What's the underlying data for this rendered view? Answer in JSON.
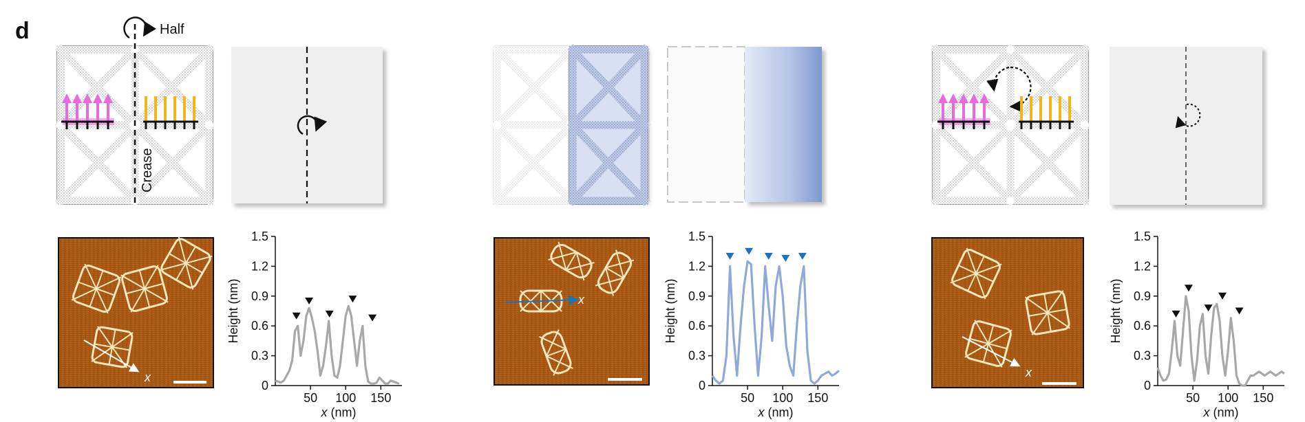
{
  "panel_letter": "d",
  "labels": {
    "half": "Half",
    "crease": "Crease",
    "afm_axis_1": "x",
    "afm_axis_2": "x",
    "afm_axis_3": "x"
  },
  "colors": {
    "magenta": "#e86adf",
    "gold": "#f2b51c",
    "blue_trace": "#8fa9db",
    "blue_marker": "#1a73bf",
    "gray_trace": "#a8a8a8",
    "afm_bg": "#a85a14",
    "origami_edge": "#888888",
    "sheet_fill": "#efefef",
    "fold_blue": "#b9c8ea"
  },
  "chart_data": [
    {
      "type": "line",
      "title": "",
      "xlabel": "x (nm)",
      "ylabel": "Height (nm)",
      "xlim": [
        0,
        180
      ],
      "ylim": [
        0,
        1.5
      ],
      "xticks": [
        50,
        100,
        150
      ],
      "yticks": [
        0,
        0.3,
        0.6,
        0.9,
        1.2,
        1.5
      ],
      "ytick_labels": [
        "0",
        "0.3",
        "0.6",
        "0.9",
        "1.2",
        "1.5"
      ],
      "grid": false,
      "series": [
        {
          "color": "#a8a8a8",
          "x": [
            0,
            4,
            8,
            12,
            16,
            20,
            24,
            28,
            32,
            36,
            40,
            44,
            48,
            52,
            56,
            60,
            64,
            68,
            72,
            76,
            80,
            84,
            88,
            92,
            96,
            100,
            104,
            108,
            112,
            116,
            120,
            124,
            128,
            132,
            136,
            140,
            144,
            148,
            152,
            156,
            160,
            164,
            168,
            172,
            176
          ],
          "y": [
            0.05,
            0.04,
            0.03,
            0.05,
            0.1,
            0.15,
            0.25,
            0.55,
            0.6,
            0.3,
            0.45,
            0.7,
            0.78,
            0.68,
            0.55,
            0.35,
            0.1,
            0.2,
            0.4,
            0.65,
            0.3,
            0.1,
            0.08,
            0.2,
            0.45,
            0.7,
            0.8,
            0.7,
            0.45,
            0.2,
            0.45,
            0.6,
            0.2,
            0.04,
            0.02,
            0.02,
            0.03,
            0.08,
            0.05,
            0.02,
            0.02,
            0.05,
            0.04,
            0.03,
            0.02
          ]
        }
      ],
      "markers": [
        {
          "x": 30,
          "y": 0.7
        },
        {
          "x": 48,
          "y": 0.85
        },
        {
          "x": 77,
          "y": 0.72
        },
        {
          "x": 110,
          "y": 0.87
        },
        {
          "x": 138,
          "y": 0.68
        }
      ]
    },
    {
      "type": "line",
      "title": "",
      "xlabel": "x (nm)",
      "ylabel": "Height (nm)",
      "xlim": [
        0,
        180
      ],
      "ylim": [
        0,
        1.5
      ],
      "xticks": [
        50,
        100,
        150
      ],
      "yticks": [
        0,
        0.3,
        0.6,
        0.9,
        1.2,
        1.5
      ],
      "ytick_labels": [
        "0",
        "0.3",
        "0.6",
        "0.9",
        "1.2",
        "1.5"
      ],
      "grid": false,
      "series": [
        {
          "color": "#8fa9db",
          "x": [
            0,
            5,
            10,
            15,
            20,
            25,
            30,
            35,
            40,
            45,
            50,
            55,
            60,
            65,
            70,
            75,
            80,
            85,
            90,
            95,
            100,
            105,
            110,
            115,
            120,
            125,
            130,
            135,
            140,
            145,
            150,
            155,
            160,
            165,
            170,
            175,
            180
          ],
          "y": [
            0.1,
            0.05,
            0.02,
            0.05,
            0.3,
            1.2,
            0.5,
            0.1,
            0.6,
            1.0,
            1.25,
            1.22,
            0.6,
            0.1,
            0.5,
            1.2,
            0.8,
            0.45,
            1.0,
            1.2,
            0.9,
            0.4,
            0.2,
            0.1,
            0.6,
            1.0,
            1.2,
            0.35,
            0.05,
            0.02,
            0.05,
            0.1,
            0.12,
            0.14,
            0.1,
            0.12,
            0.15
          ]
        }
      ],
      "markers": [
        {
          "x": 25,
          "y": 1.3
        },
        {
          "x": 52,
          "y": 1.35
        },
        {
          "x": 80,
          "y": 1.3
        },
        {
          "x": 104,
          "y": 1.28
        },
        {
          "x": 128,
          "y": 1.3
        }
      ]
    },
    {
      "type": "line",
      "title": "",
      "xlabel": "x (nm)",
      "ylabel": "Height (nm)",
      "xlim": [
        0,
        180
      ],
      "ylim": [
        0,
        1.5
      ],
      "xticks": [
        50,
        100,
        150
      ],
      "yticks": [
        0,
        0.3,
        0.6,
        0.9,
        1.2,
        1.5
      ],
      "ytick_labels": [
        "0",
        "0.3",
        "0.6",
        "0.9",
        "1.2",
        "1.5"
      ],
      "grid": false,
      "series": [
        {
          "color": "#a8a8a8",
          "x": [
            0,
            4,
            8,
            12,
            16,
            20,
            24,
            28,
            32,
            36,
            40,
            44,
            48,
            52,
            56,
            60,
            64,
            68,
            72,
            76,
            80,
            84,
            88,
            92,
            96,
            100,
            104,
            108,
            112,
            116,
            120,
            124,
            128,
            132,
            136,
            140,
            144,
            148,
            152,
            156,
            160,
            164,
            168,
            172,
            176,
            180
          ],
          "y": [
            0.18,
            0.1,
            0.05,
            0.06,
            0.12,
            0.35,
            0.65,
            0.3,
            0.2,
            0.55,
            0.9,
            0.75,
            0.3,
            0.05,
            0.25,
            0.6,
            0.72,
            0.3,
            0.12,
            0.5,
            0.78,
            0.82,
            0.65,
            0.3,
            0.1,
            0.35,
            0.68,
            0.45,
            0.1,
            0.02,
            0.0,
            0.0,
            0.05,
            0.1,
            0.1,
            0.12,
            0.14,
            0.12,
            0.1,
            0.12,
            0.14,
            0.12,
            0.1,
            0.12,
            0.14,
            0.12
          ]
        }
      ],
      "markers": [
        {
          "x": 26,
          "y": 0.72
        },
        {
          "x": 44,
          "y": 0.98
        },
        {
          "x": 72,
          "y": 0.78
        },
        {
          "x": 92,
          "y": 0.9
        },
        {
          "x": 116,
          "y": 0.75
        }
      ]
    }
  ]
}
